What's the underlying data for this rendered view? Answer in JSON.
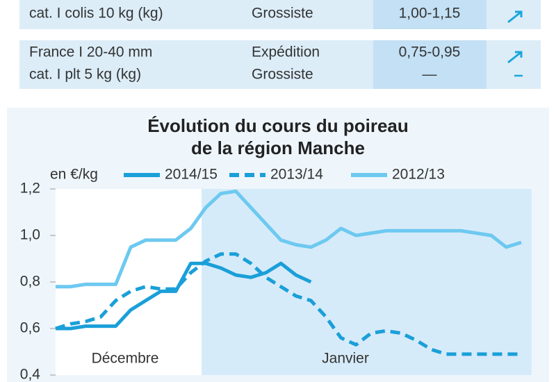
{
  "table": {
    "rows": [
      {
        "product": [
          "cat. I colis 10 kg (kg)"
        ],
        "stage": [
          "Grossiste"
        ],
        "price": [
          "1,00-1,15"
        ]
      },
      {
        "product": [
          "France I 20-40 mm",
          "cat. I plt 5 kg (kg)"
        ],
        "stage": [
          "Expédition",
          "Grossiste"
        ],
        "price": [
          "0,75-0,95",
          "—"
        ]
      }
    ]
  },
  "chart_data": {
    "type": "line",
    "title": [
      "Évolution du cours du poireau",
      "de la région Manche"
    ],
    "ylabel": "en €/kg",
    "annotations": [
      "Décembre",
      "Janvier"
    ],
    "categories": [
      null,
      null,
      null,
      null,
      null,
      null,
      null,
      null,
      null,
      null,
      null,
      null,
      null,
      null,
      null,
      null,
      null,
      null,
      null,
      null,
      null,
      null,
      null,
      null,
      null,
      null,
      null,
      null,
      null,
      null,
      null,
      null
    ],
    "series": [
      {
        "name": "2014/15",
        "color": "#1a9fd9",
        "style": "solid",
        "values": [
          0.6,
          0.6,
          0.61,
          0.61,
          0.61,
          0.68,
          0.72,
          0.76,
          0.76,
          0.88,
          0.88,
          0.86,
          0.83,
          0.82,
          0.84,
          0.88,
          0.83,
          0.8,
          null,
          null,
          null,
          null,
          null,
          null,
          null,
          null,
          null,
          null,
          null,
          null,
          null,
          null
        ]
      },
      {
        "name": "2013/14",
        "color": "#1a9fd9",
        "style": "dashed",
        "values": [
          0.6,
          0.62,
          0.63,
          0.65,
          0.72,
          0.76,
          0.78,
          0.77,
          0.77,
          0.84,
          0.89,
          0.92,
          0.92,
          0.88,
          0.82,
          0.78,
          0.74,
          0.72,
          0.65,
          0.56,
          0.53,
          0.58,
          0.59,
          0.58,
          0.55,
          0.51,
          0.49,
          0.49,
          0.49,
          0.49,
          0.49,
          0.49
        ]
      },
      {
        "name": "2012/13",
        "color": "#6dc9f0",
        "style": "solid",
        "values": [
          0.78,
          0.78,
          0.79,
          0.79,
          0.79,
          0.95,
          0.98,
          0.98,
          0.98,
          1.03,
          1.12,
          1.18,
          1.19,
          1.12,
          1.05,
          0.98,
          0.96,
          0.95,
          0.98,
          1.03,
          1.0,
          1.01,
          1.02,
          1.02,
          1.02,
          1.02,
          1.02,
          1.02,
          1.01,
          1.0,
          0.95,
          0.97
        ]
      }
    ],
    "ylim": [
      0.4,
      1.2
    ],
    "yticks": [
      {
        "value": 0.4,
        "label": "0,4"
      },
      {
        "value": 0.6,
        "label": "0,6"
      },
      {
        "value": 0.8,
        "label": "0,8"
      },
      {
        "value": 1.0,
        "label": "1,0"
      },
      {
        "value": 1.2,
        "label": "1,2"
      }
    ],
    "grid": false
  }
}
